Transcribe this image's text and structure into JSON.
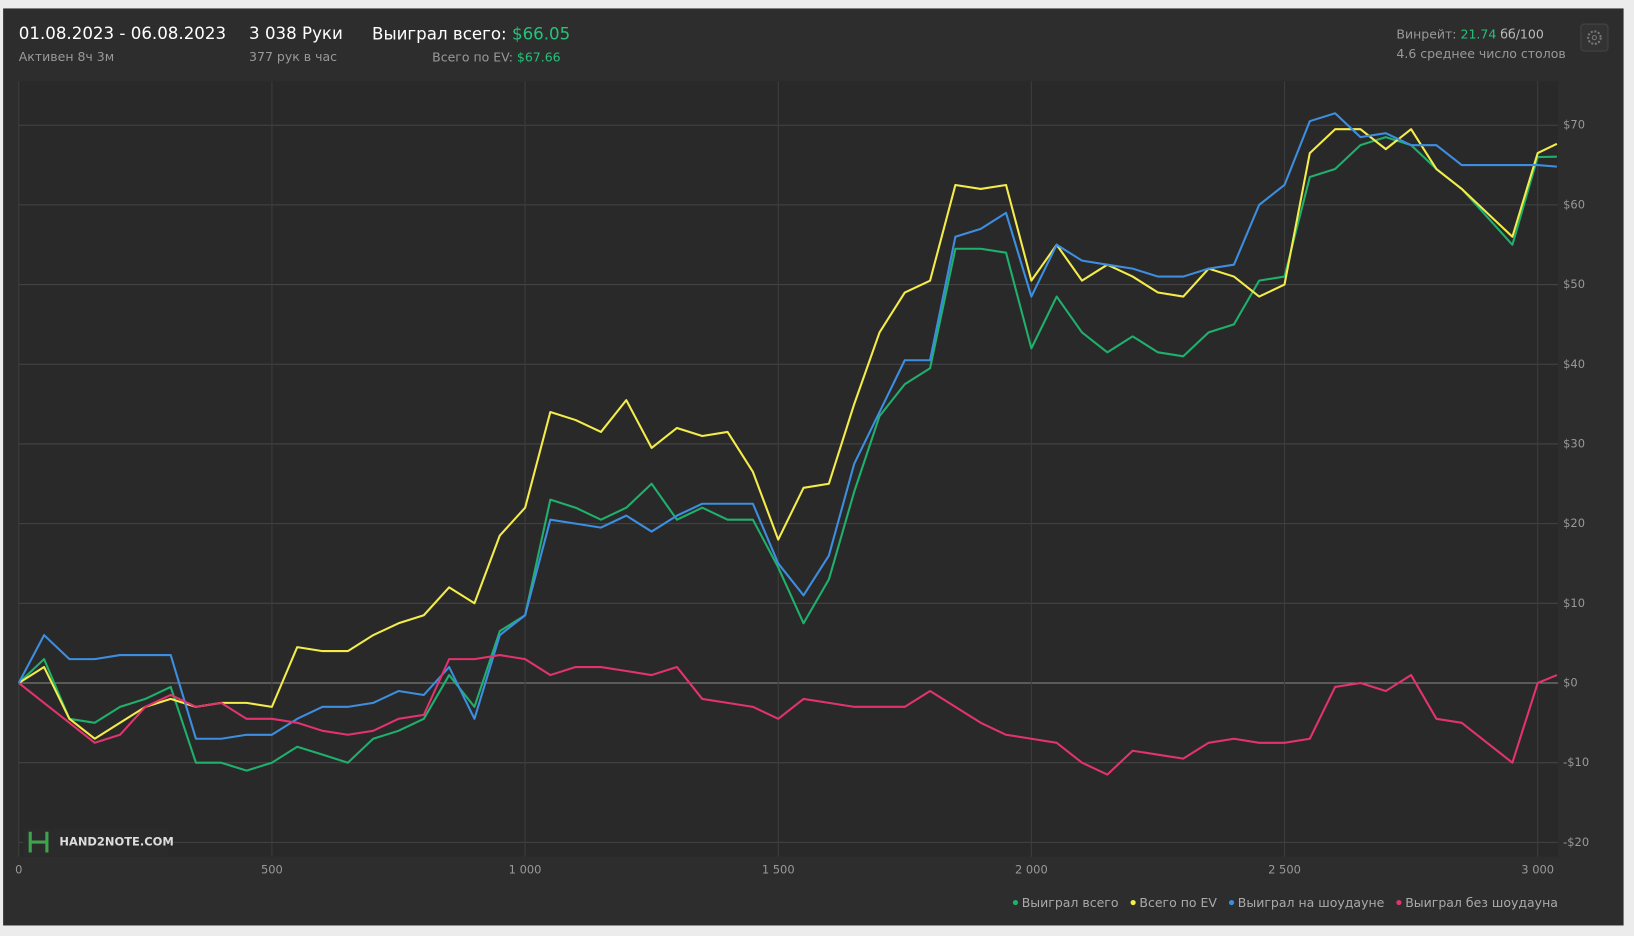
{
  "header": {
    "date_range": "01.08.2023 - 06.08.2023",
    "active": "Активен 8ч 3м",
    "hands": "3 038 Руки",
    "hands_per_hour": "377 рук в час",
    "won_label": "Выиграл всего:",
    "won_value": "$66.05",
    "ev_label": "Всего по EV:",
    "ev_value": "$67.66",
    "winrate_label": "Винрейт:",
    "winrate_value": "21.74",
    "winrate_unit": "бб/100",
    "tables": "4.6 среднее число столов",
    "logo": "HAND2NOTE.COM"
  },
  "chart_data": {
    "type": "line",
    "x": [
      0,
      50,
      100,
      150,
      200,
      250,
      300,
      350,
      400,
      450,
      500,
      550,
      600,
      650,
      700,
      750,
      800,
      850,
      900,
      950,
      1000,
      1050,
      1100,
      1150,
      1200,
      1250,
      1300,
      1350,
      1400,
      1450,
      1500,
      1550,
      1600,
      1650,
      1700,
      1750,
      1800,
      1850,
      1900,
      1950,
      2000,
      2050,
      2100,
      2150,
      2200,
      2250,
      2300,
      2350,
      2400,
      2450,
      2500,
      2550,
      2600,
      2650,
      2700,
      2750,
      2800,
      2850,
      2900,
      2950,
      3000,
      3038
    ],
    "series": [
      {
        "name": "Выиграл всего",
        "color": "#1fb06c",
        "values": [
          0,
          3,
          -4.5,
          -5,
          -3,
          -2,
          -0.5,
          -10,
          -10,
          -11,
          -10,
          -8,
          -9,
          -10,
          -7,
          -6,
          -4.5,
          1,
          -3,
          6.5,
          8.5,
          23,
          22,
          20.5,
          22,
          25,
          20.5,
          22,
          20.5,
          20.5,
          14.5,
          7.5,
          13,
          24,
          33.5,
          37.5,
          39.5,
          54.5,
          54.5,
          54,
          42,
          48.5,
          44,
          41.5,
          43.5,
          41.5,
          41,
          44,
          45,
          50.5,
          51,
          63.5,
          64.5,
          67.5,
          68.5,
          67.5,
          64.5,
          62,
          58.5,
          55,
          66,
          66.05
        ]
      },
      {
        "name": "Всего по EV",
        "color": "#f4ec4a",
        "values": [
          0,
          2,
          -4.5,
          -7,
          -5,
          -3,
          -2,
          -3,
          -2.5,
          -2.5,
          -3,
          4.5,
          4,
          4,
          6,
          7.5,
          8.5,
          12,
          10,
          18.5,
          22,
          34,
          33,
          31.5,
          35.5,
          29.5,
          32,
          31,
          31.5,
          26.5,
          18,
          24.5,
          25,
          35,
          44,
          49,
          50.5,
          62.5,
          62,
          62.5,
          50.5,
          55,
          50.5,
          52.5,
          51,
          49,
          48.5,
          52,
          51,
          48.5,
          50,
          66.5,
          69.5,
          69.5,
          67,
          69.5,
          64.5,
          62,
          59,
          56,
          66.5,
          67.66
        ]
      },
      {
        "name": "Выиграл на шоудауне",
        "color": "#3d8ee0",
        "values": [
          0,
          6,
          3,
          3,
          3.5,
          3.5,
          3.5,
          -7,
          -7,
          -6.5,
          -6.5,
          -4.5,
          -3,
          -3,
          -2.5,
          -1,
          -1.5,
          2,
          -4.5,
          6,
          8.5,
          20.5,
          20,
          19.5,
          21,
          19,
          21,
          22.5,
          22.5,
          22.5,
          15,
          11,
          16,
          27.5,
          34,
          40.5,
          40.5,
          56,
          57,
          59,
          48.5,
          55,
          53,
          52.5,
          52,
          51,
          51,
          52,
          52.5,
          60,
          62.5,
          70.5,
          71.5,
          68.5,
          69,
          67.5,
          67.5,
          65,
          65,
          65,
          65,
          64.8
        ]
      },
      {
        "name": "Выиграл без шоудауна",
        "color": "#e2336f",
        "values": [
          0,
          -2.5,
          -5,
          -7.5,
          -6.5,
          -3,
          -1.5,
          -3,
          -2.5,
          -4.5,
          -4.5,
          -5,
          -6,
          -6.5,
          -6,
          -4.5,
          -4,
          3,
          3,
          3.5,
          3,
          1,
          2,
          2,
          1.5,
          1,
          2,
          -2,
          -2.5,
          -3,
          -4.5,
          -2,
          -2.5,
          -3,
          -3,
          -3,
          -1,
          -3,
          -5,
          -6.5,
          -7,
          -7.5,
          -10,
          -11.5,
          -8.5,
          -9,
          -9.5,
          -7.5,
          -7,
          -7.5,
          -7.5,
          -7,
          -0.5,
          0,
          -1,
          1,
          -4.5,
          -5,
          -7.5,
          -10,
          0,
          1
        ]
      }
    ],
    "xlim": [
      0,
      3040
    ],
    "ylim": [
      -21.8,
      75.5
    ],
    "xticks": [
      0,
      500,
      {
        "value": 1000,
        "label": "1 000"
      },
      {
        "value": 1500,
        "label": "1 500"
      },
      {
        "value": 2000,
        "label": "2 000"
      },
      {
        "value": 2500,
        "label": "2 500"
      },
      {
        "value": 3000,
        "label": "3 000"
      }
    ],
    "yticks": [
      {
        "value": -20,
        "label": "-$20"
      },
      {
        "value": -10,
        "label": "-$10"
      },
      {
        "value": 0,
        "label": "$0"
      },
      {
        "value": 10,
        "label": "$10"
      },
      {
        "value": 20,
        "label": "$20"
      },
      {
        "value": 30,
        "label": "$30"
      },
      {
        "value": 40,
        "label": "$40"
      },
      {
        "value": 50,
        "label": "$50"
      },
      {
        "value": 60,
        "label": "$60"
      },
      {
        "value": 70,
        "label": "$70"
      }
    ],
    "grid": true,
    "legend": "bottom-right"
  }
}
